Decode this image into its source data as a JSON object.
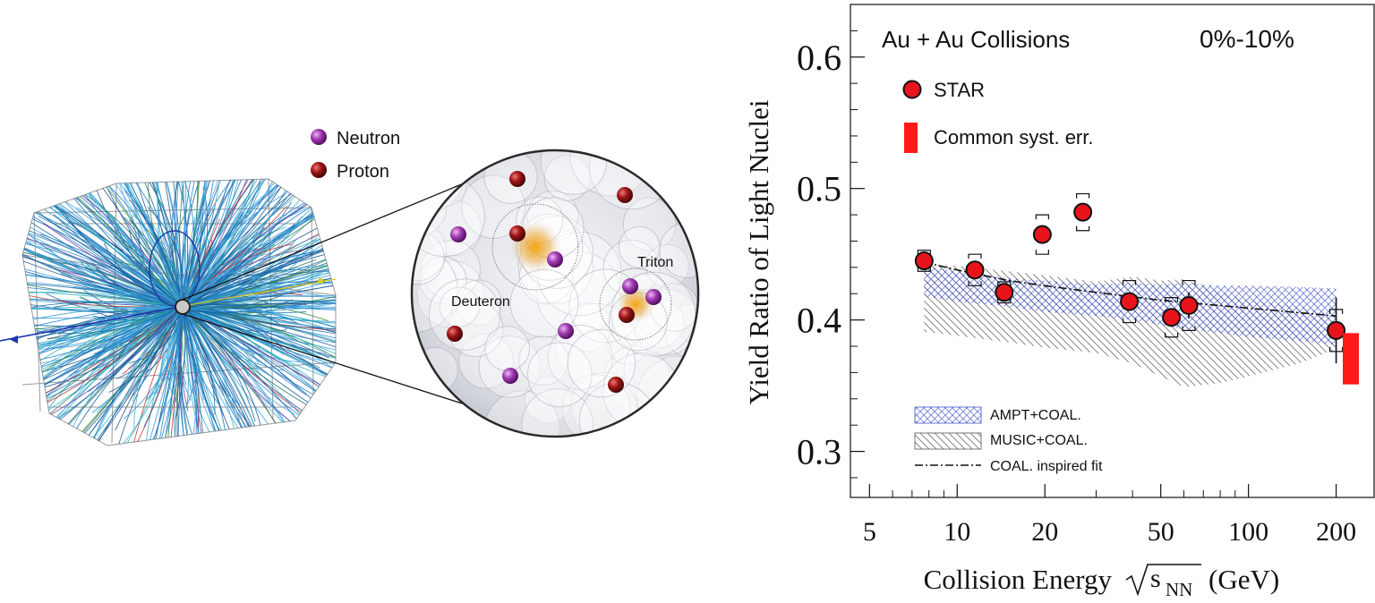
{
  "illustration": {
    "legend": {
      "neutron_label": "Neutron",
      "proton_label": "Proton"
    },
    "labels": {
      "deuteron": "Deuteron",
      "triton": "Triton"
    },
    "colors": {
      "neutron": "#9b2aa8",
      "proton": "#8b1212",
      "nucleus_glow": "#f0a000",
      "track_blue": "#1f7fc8"
    }
  },
  "chart_data": {
    "type": "scatter",
    "x_scale": "log",
    "xlim": [
      4.3,
      270
    ],
    "ylim": [
      0.265,
      0.64
    ],
    "xlabel_main": "Collision Energy",
    "xlabel_s": "s",
    "xlabel_sub": "NN",
    "xlabel_unit": "(GeV)",
    "ylabel": "Yield Ratio of Light Nuclei",
    "title_left": "Au + Au Collisions",
    "title_right": "0%-10%",
    "x_ticks": [
      5,
      10,
      20,
      50,
      100,
      200
    ],
    "x_tick_labels": [
      "5",
      "10",
      "20",
      "50",
      "100",
      "200"
    ],
    "x_minor_ticks": [
      6,
      7,
      8,
      9,
      30,
      40,
      60,
      70,
      80,
      90,
      300
    ],
    "y_ticks": [
      0.3,
      0.4,
      0.5,
      0.6
    ],
    "y_tick_labels": [
      "0.3",
      "0.4",
      "0.5",
      "0.6"
    ],
    "legend": {
      "star_label": "STAR",
      "syst_label": "Common syst. err.",
      "ampt_label": "AMPT+COAL.",
      "music_label": "MUSIC+COAL.",
      "fit_label": "COAL. inspired fit"
    },
    "series": [
      {
        "name": "STAR",
        "x": [
          7.7,
          11.5,
          14.5,
          19.6,
          27,
          39,
          54.4,
          62.4,
          200
        ],
        "y": [
          0.445,
          0.438,
          0.421,
          0.465,
          0.482,
          0.414,
          0.402,
          0.411,
          0.392
        ],
        "stat_err": [
          0.006,
          0.006,
          0.005,
          0.007,
          0.006,
          0.005,
          0.007,
          0.01,
          0.025
        ],
        "syst_err": [
          0.008,
          0.012,
          0.008,
          0.015,
          0.014,
          0.016,
          0.015,
          0.019,
          0.016
        ],
        "color": "#e8141c"
      }
    ],
    "fit_line": {
      "x": [
        7.7,
        10,
        15,
        20,
        30,
        50,
        100,
        200
      ],
      "y": [
        0.444,
        0.438,
        0.43,
        0.426,
        0.421,
        0.415,
        0.409,
        0.403
      ]
    },
    "ampt_band": {
      "x": [
        7.7,
        10,
        15,
        20,
        30,
        40,
        50,
        60,
        80,
        100,
        150,
        200
      ],
      "y_low": [
        0.418,
        0.414,
        0.41,
        0.406,
        0.403,
        0.4,
        0.396,
        0.393,
        0.39,
        0.387,
        0.384,
        0.381
      ],
      "y_high": [
        0.441,
        0.437,
        0.432,
        0.43,
        0.427,
        0.428,
        0.427,
        0.428,
        0.426,
        0.426,
        0.425,
        0.424
      ],
      "color": "#4455cc"
    },
    "music_band": {
      "x": [
        7.7,
        10,
        15,
        20,
        30,
        40,
        50,
        60,
        80,
        100,
        150,
        200
      ],
      "y_low": [
        0.391,
        0.388,
        0.383,
        0.379,
        0.375,
        0.367,
        0.357,
        0.349,
        0.352,
        0.357,
        0.367,
        0.378
      ],
      "y_high": [
        0.443,
        0.441,
        0.437,
        0.434,
        0.429,
        0.433,
        0.43,
        0.431,
        0.421,
        0.415,
        0.41,
        0.403
      ],
      "color": "#555555"
    },
    "common_syst": {
      "y_low": 0.351,
      "y_high": 0.39,
      "color": "#ff1a1a"
    }
  }
}
